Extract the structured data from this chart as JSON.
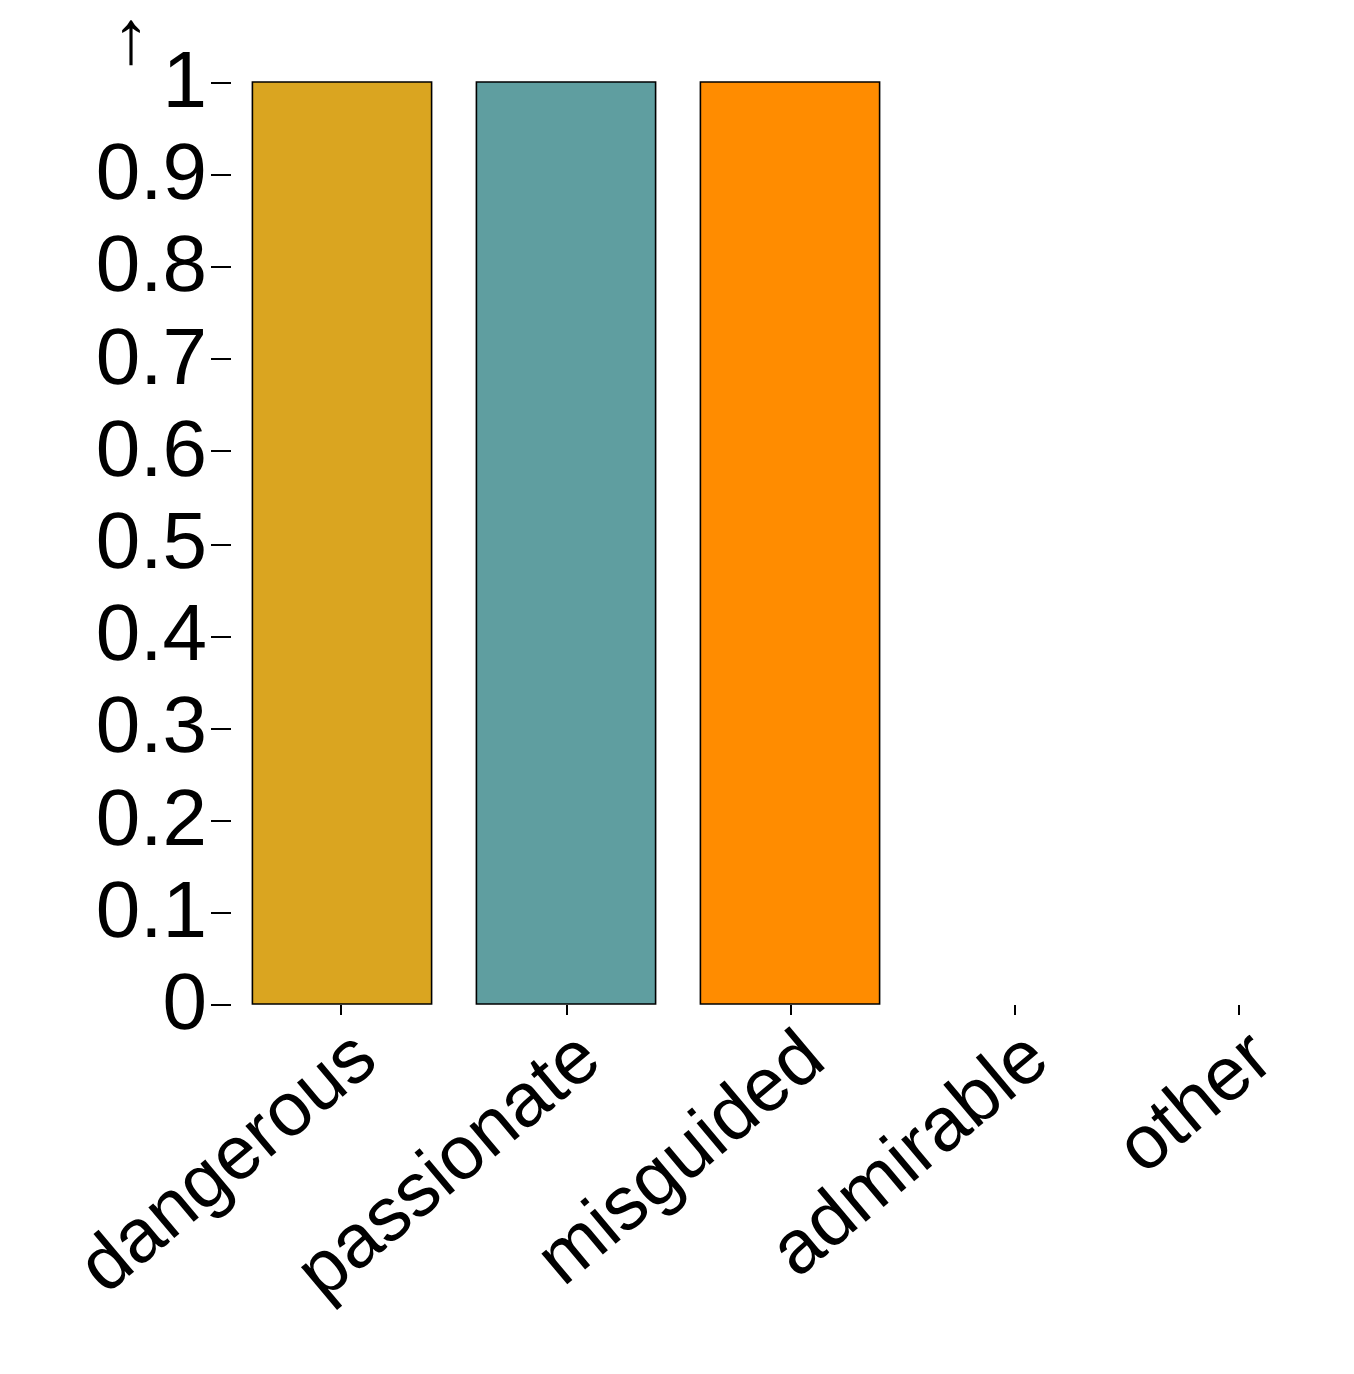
{
  "chart_data": {
    "type": "bar",
    "ylabel": "↑",
    "categories": [
      "dangerous",
      "passionate",
      "misguided",
      "admirable",
      "other"
    ],
    "values": [
      1,
      1,
      1,
      0,
      0
    ],
    "colors": [
      "#daa520",
      "#5f9ea0",
      "#ff8c00",
      null,
      null
    ],
    "ylim": [
      0,
      1
    ],
    "yticks": [
      0,
      0.1,
      0.2,
      0.3,
      0.4,
      0.5,
      0.6,
      0.7,
      0.8,
      0.9,
      1
    ],
    "grid": false
  }
}
